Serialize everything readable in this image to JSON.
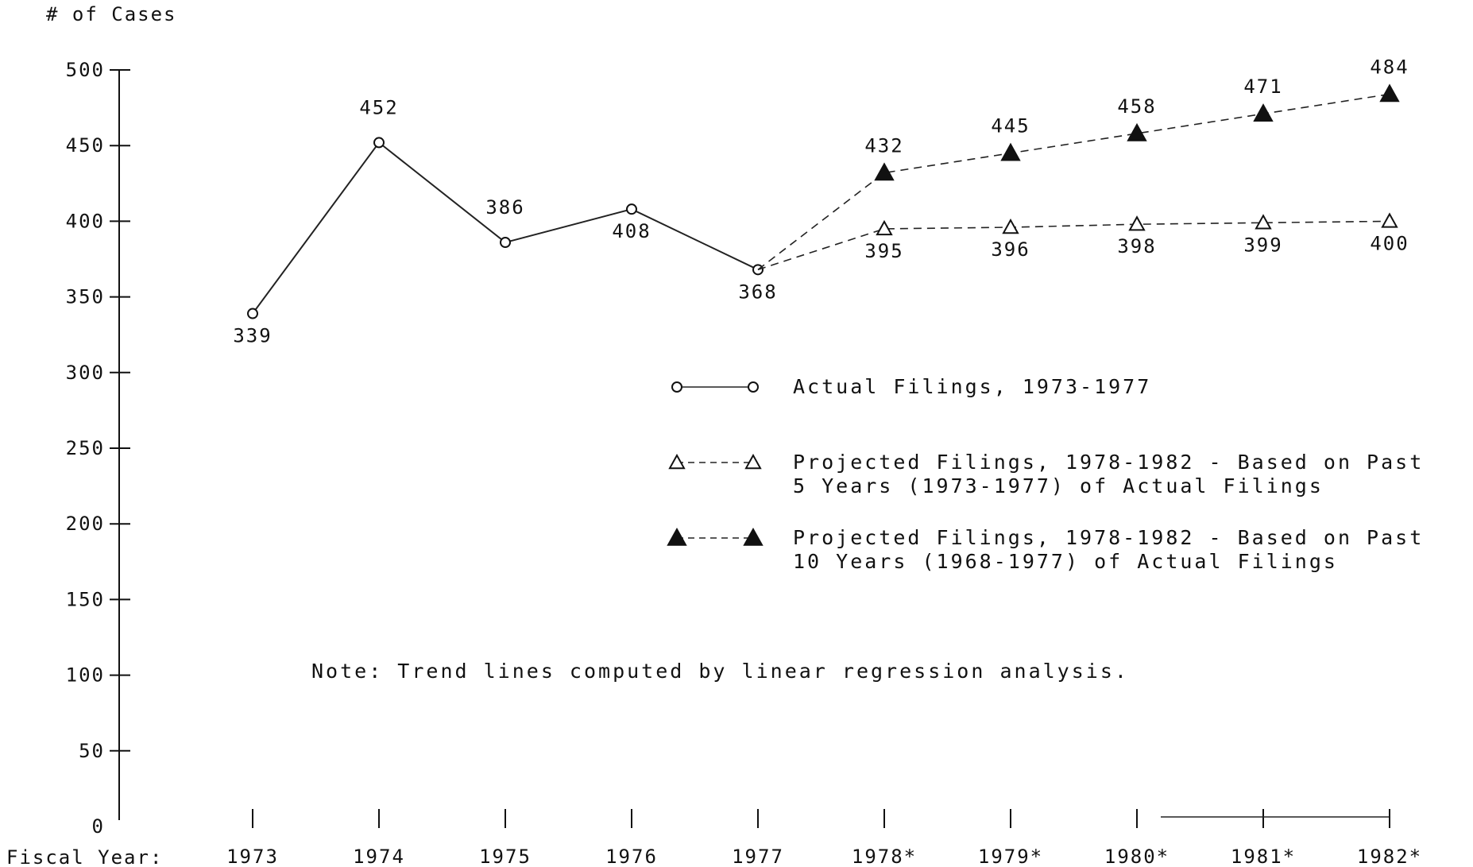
{
  "chart_data": {
    "type": "line",
    "ylabel": "# of Cases",
    "xlabel": "Fiscal Year:",
    "ylim": [
      0,
      500
    ],
    "y_ticks": [
      "0",
      "50",
      "100",
      "150",
      "200",
      "250",
      "300",
      "350",
      "400",
      "450",
      "500"
    ],
    "categories": [
      "1973",
      "1974",
      "1975",
      "1976",
      "1977",
      "1978*",
      "1979*",
      "1980*",
      "1981*",
      "1982*"
    ],
    "series": [
      {
        "name": "Actual Filings, 1973-1977",
        "marker": "open-circle",
        "line": "solid",
        "x": [
          "1973",
          "1974",
          "1975",
          "1976",
          "1977"
        ],
        "values": [
          339,
          452,
          386,
          408,
          368
        ]
      },
      {
        "name": "Projected Filings, 1978-1982 - Based on Past 5 Years (1973-1977) of Actual Filings",
        "marker": "open-triangle",
        "line": "dashed",
        "x": [
          "1977",
          "1978*",
          "1979*",
          "1980*",
          "1981*",
          "1982*"
        ],
        "values": [
          368,
          395,
          396,
          398,
          399,
          400
        ]
      },
      {
        "name": "Projected Filings, 1978-1982 - Based on Past 10 Years (1968-1977) of Actual Filings",
        "marker": "filled-triangle",
        "line": "dashed",
        "x": [
          "1977",
          "1978*",
          "1979*",
          "1980*",
          "1981*",
          "1982*"
        ],
        "values": [
          368,
          432,
          445,
          458,
          471,
          484
        ]
      }
    ],
    "legend": {
      "placement": "center-right",
      "entries": [
        [
          "Actual Filings, 1973-1977"
        ],
        [
          "Projected Filings, 1978-1982 - Based on Past",
          "5 Years (1973-1977) of Actual Filings"
        ],
        [
          "Projected Filings, 1978-1982 - Based on Past",
          "10 Years (1968-1977) of Actual Filings"
        ]
      ]
    },
    "note": "Note:  Trend lines computed by linear regression analysis.",
    "grid": false
  }
}
